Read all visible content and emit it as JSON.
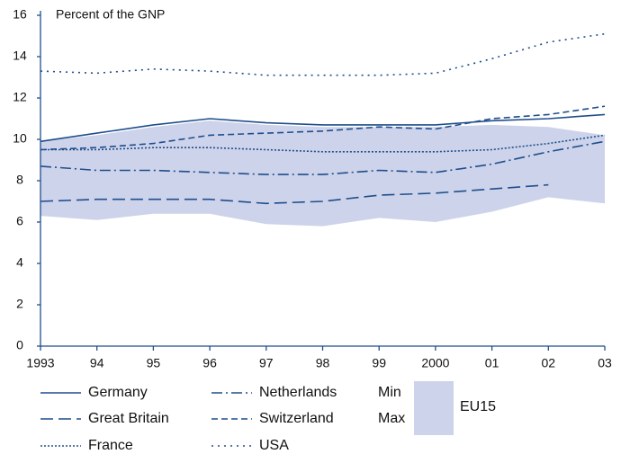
{
  "chart_data": {
    "type": "line",
    "y_label": "Percent of the GNP",
    "categories": [
      "1993",
      "94",
      "95",
      "96",
      "97",
      "98",
      "99",
      "2000",
      "01",
      "02",
      "03"
    ],
    "ylim": [
      0,
      16
    ],
    "yticks": [
      0,
      2,
      4,
      6,
      8,
      10,
      12,
      14,
      16
    ],
    "series": [
      {
        "name": "Germany",
        "color": "#1f4e8c",
        "dash": "none",
        "values": [
          9.9,
          10.3,
          10.7,
          11.0,
          10.8,
          10.7,
          10.7,
          10.7,
          10.9,
          11.0,
          11.2
        ]
      },
      {
        "name": "Great Britain",
        "color": "#1f4e8c",
        "dash": "14 6",
        "values": [
          7.0,
          7.1,
          7.1,
          7.1,
          6.9,
          7.0,
          7.3,
          7.4,
          7.6,
          7.8,
          null
        ]
      },
      {
        "name": "France",
        "color": "#1f4e8c",
        "dash": "2 2",
        "values": [
          9.5,
          9.5,
          9.6,
          9.6,
          9.5,
          9.4,
          9.4,
          9.4,
          9.5,
          9.8,
          10.2
        ]
      },
      {
        "name": "Netherlands",
        "color": "#1f4e8c",
        "dash": "12 4 2 4",
        "values": [
          8.7,
          8.5,
          8.5,
          8.4,
          8.3,
          8.3,
          8.5,
          8.4,
          8.8,
          9.4,
          9.9
        ]
      },
      {
        "name": "Switzerland",
        "color": "#1f4e8c",
        "dash": "7 4",
        "values": [
          9.5,
          9.6,
          9.8,
          10.2,
          10.3,
          10.4,
          10.6,
          10.5,
          11.0,
          11.2,
          11.6
        ]
      },
      {
        "name": "USA",
        "color": "#1f4e8c",
        "dash": "2 5",
        "values": [
          13.3,
          13.2,
          13.4,
          13.3,
          13.1,
          13.1,
          13.1,
          13.2,
          13.9,
          14.7,
          15.1
        ]
      }
    ],
    "band": {
      "name": "EU15",
      "min_label": "Min",
      "max_label": "Max",
      "color": "#cdd3ea",
      "min": [
        6.3,
        6.1,
        6.4,
        6.4,
        5.9,
        5.8,
        6.2,
        6.0,
        6.5,
        7.2,
        6.9
      ],
      "max": [
        9.9,
        10.2,
        10.6,
        10.9,
        10.7,
        10.6,
        10.6,
        10.6,
        10.7,
        10.6,
        10.2
      ]
    }
  }
}
